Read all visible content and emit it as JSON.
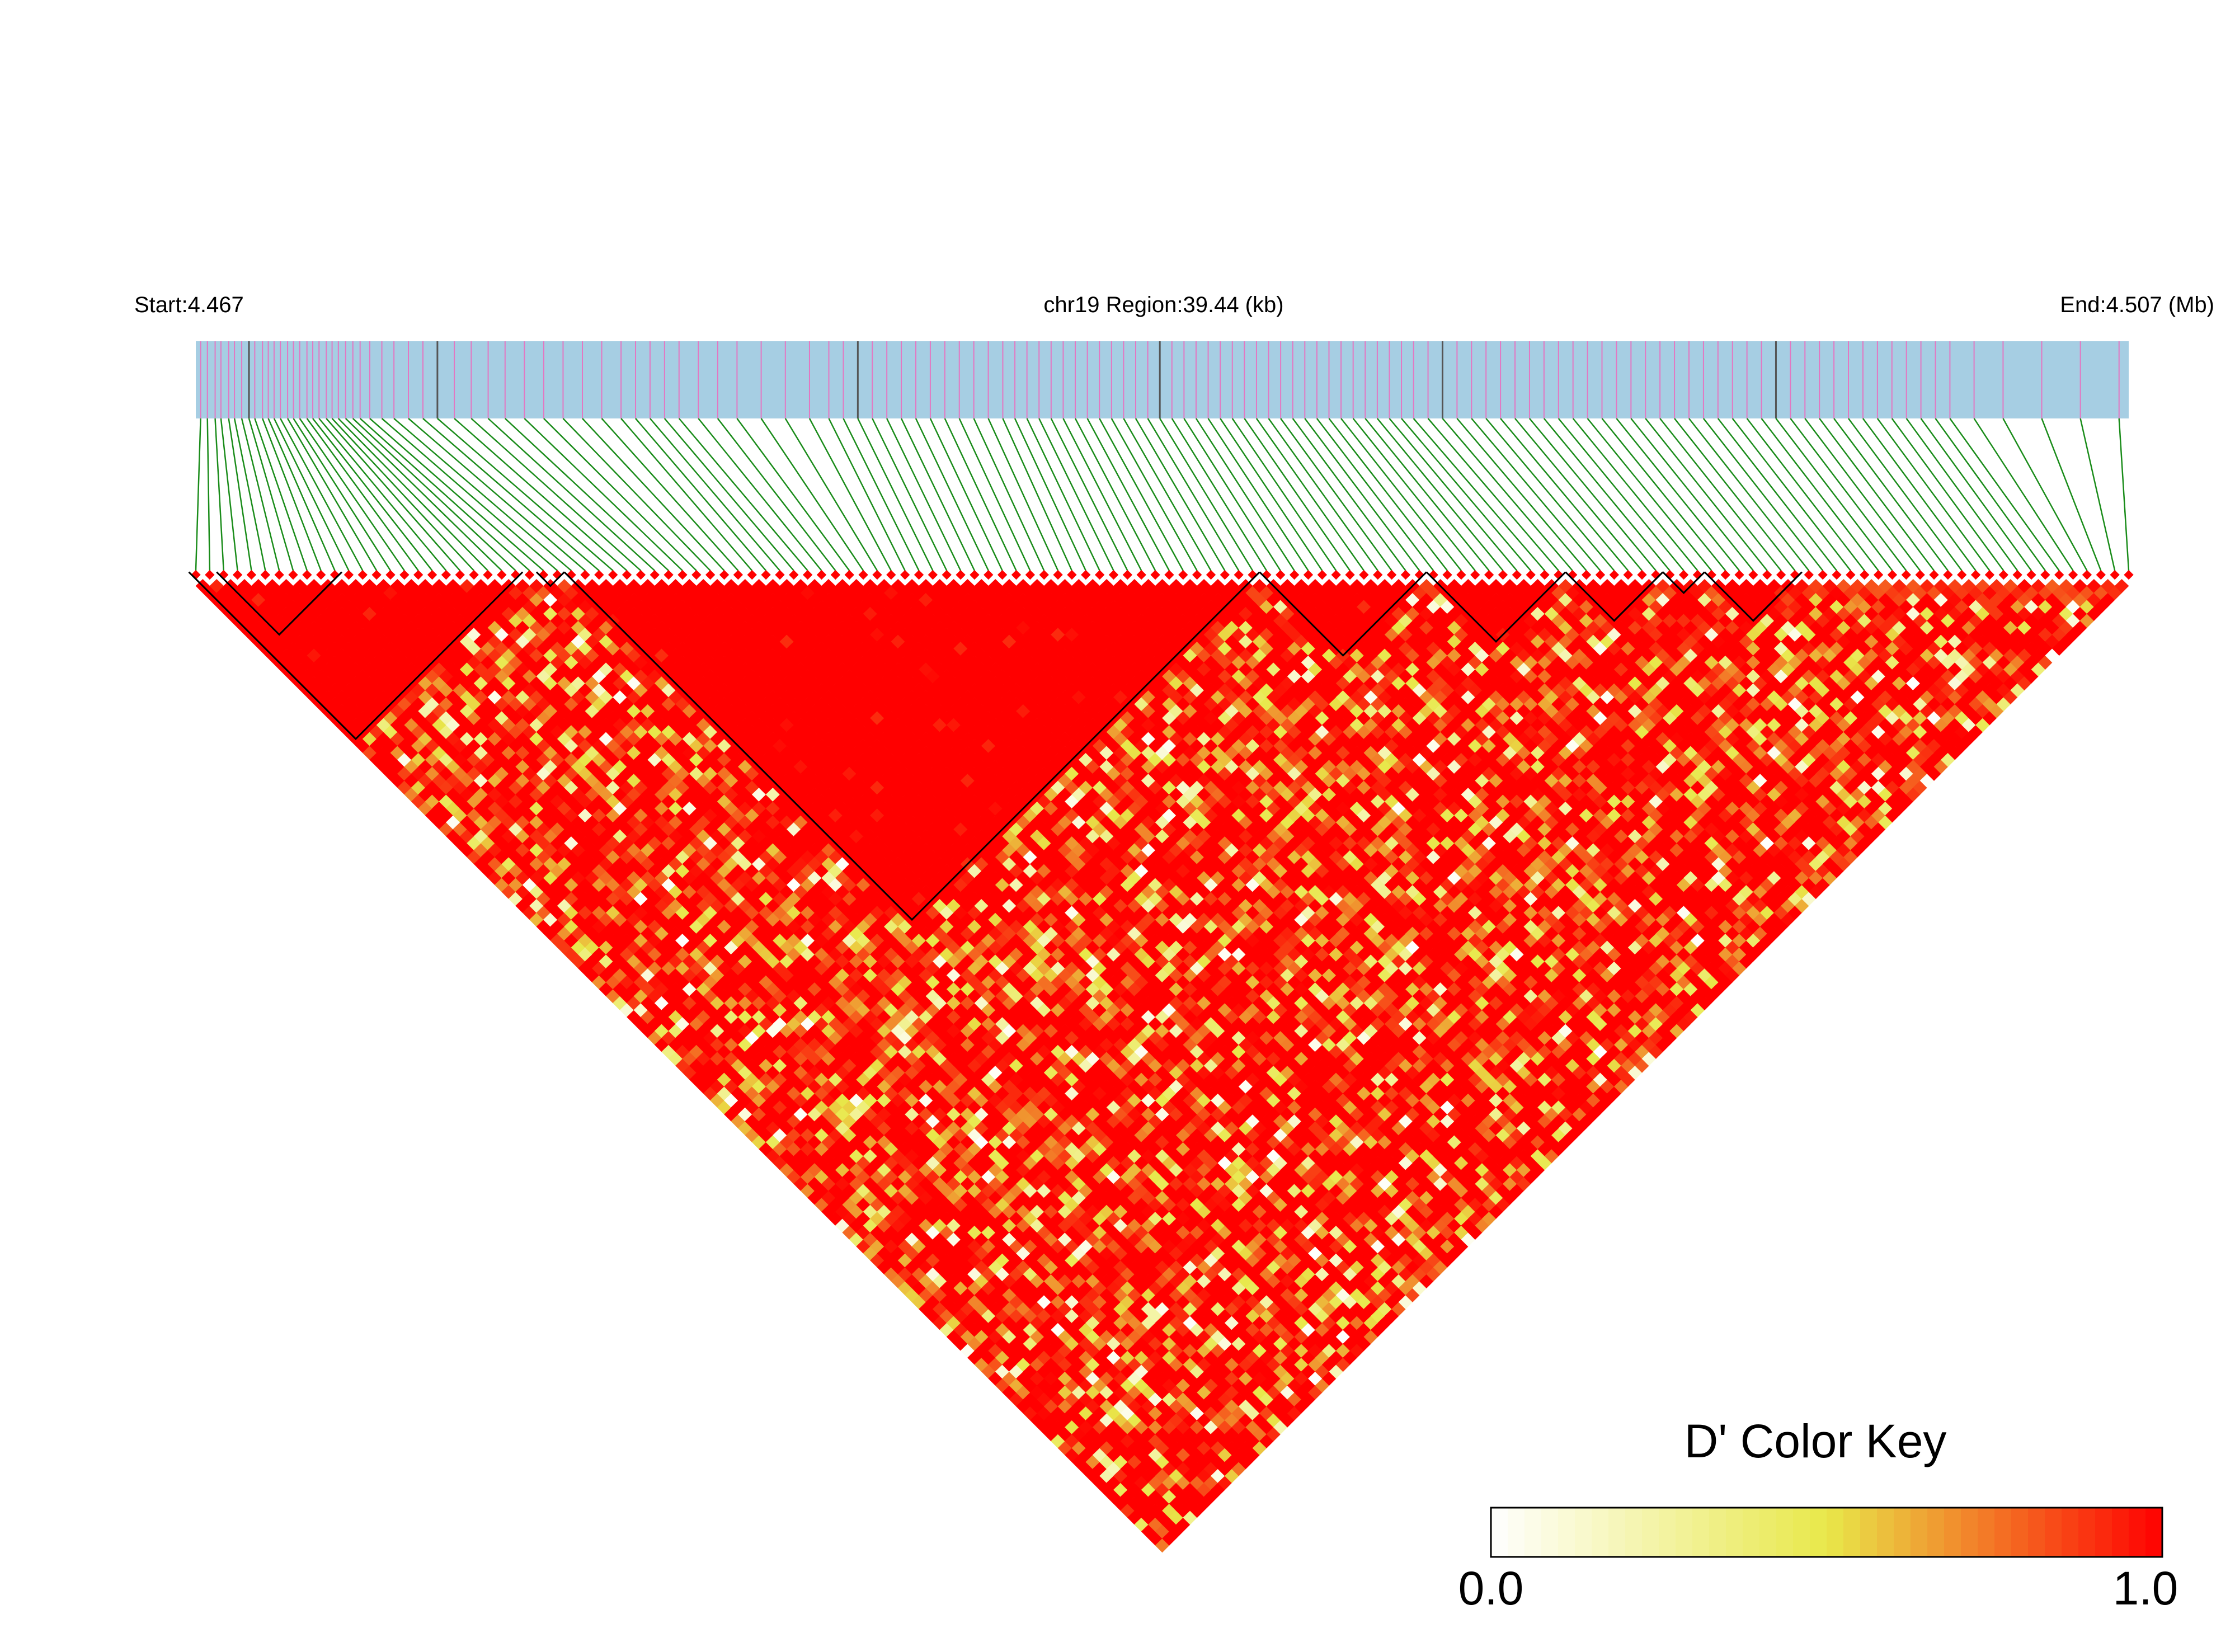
{
  "header": {
    "start_label": "Start:4.467",
    "region_label": "chr19 Region:39.44 (kb)",
    "end_label": "End:4.507 (Mb)"
  },
  "legend": {
    "title": "D' Color Key",
    "min_label": "0.0",
    "max_label": "1.0"
  },
  "colors": {
    "track_fill": "#a6cee3",
    "gene_mark": "#e377c2",
    "dark_mark": "#555555",
    "connector": "#1a8c1a",
    "ld_high": "#ff0000",
    "scale_low": "#ffffff",
    "scale_mid": "#e8e84a",
    "scale_high": "#ff0000",
    "block_outline": "#000000"
  },
  "chart_data": {
    "type": "heatmap",
    "title": "",
    "chromosome": "chr19",
    "region_start_mb": 4.467,
    "region_end_mb": 4.507,
    "region_length_kb": 39.44,
    "n_snps": 140,
    "measure": "D'",
    "value_range": [
      0.0,
      1.0
    ],
    "snp_positions_mb": [
      4.4671,
      4.46724,
      4.4674,
      4.46752,
      4.46768,
      4.4678,
      4.46795,
      4.4681,
      4.46822,
      4.46838,
      4.4685,
      4.46862,
      4.46875,
      4.4689,
      4.46902,
      4.46915,
      4.4693,
      4.46942,
      4.46955,
      4.4697,
      4.46982,
      4.46995,
      4.4701,
      4.47025,
      4.4704,
      4.4706,
      4.47085,
      4.4711,
      4.4714,
      4.4717,
      4.472,
      4.47235,
      4.4727,
      4.47305,
      4.4734,
      4.4738,
      4.4742,
      4.4746,
      4.475,
      4.4754,
      4.4758,
      4.4761,
      4.4764,
      4.4767,
      4.477,
      4.4774,
      4.4778,
      4.4782,
      4.4787,
      4.4792,
      4.4797,
      4.4801,
      4.4804,
      4.4807,
      4.481,
      4.4813,
      4.4816,
      4.4819,
      4.4822,
      4.4825,
      4.4828,
      4.4831,
      4.4834,
      4.4837,
      4.48395,
      4.4842,
      4.48445,
      4.4847,
      4.48495,
      4.4852,
      4.48545,
      4.4857,
      4.48595,
      4.4862,
      4.48645,
      4.4867,
      4.48695,
      4.4872,
      4.48745,
      4.4877,
      4.48795,
      4.4882,
      4.48845,
      4.4887,
      4.48895,
      4.4892,
      4.48945,
      4.4897,
      4.48995,
      4.4902,
      4.49045,
      4.4907,
      4.49095,
      4.4912,
      4.49145,
      4.4917,
      4.49195,
      4.4922,
      4.4925,
      4.4928,
      4.4931,
      4.4934,
      4.4937,
      4.494,
      4.4943,
      4.4946,
      4.4949,
      4.4952,
      4.4955,
      4.4958,
      4.4961,
      4.4964,
      4.4967,
      4.497,
      4.4973,
      4.4976,
      4.4979,
      4.4982,
      4.4985,
      4.4988,
      4.4991,
      4.4994,
      4.4997,
      4.5,
      4.5003,
      4.5006,
      4.5009,
      4.5012,
      4.5015,
      4.5018,
      4.5021,
      4.5024,
      4.5027,
      4.503,
      4.5033,
      4.5038,
      4.5044,
      4.5052,
      4.506,
      4.5068
    ],
    "ld_blocks": [
      {
        "first_snp": 1,
        "last_snp": 24
      },
      {
        "first_snp": 3,
        "last_snp": 11
      },
      {
        "first_snp": 26,
        "last_snp": 27
      },
      {
        "first_snp": 28,
        "last_snp": 77
      },
      {
        "first_snp": 78,
        "last_snp": 89
      },
      {
        "first_snp": 90,
        "last_snp": 99
      },
      {
        "first_snp": 100,
        "last_snp": 106
      },
      {
        "first_snp": 107,
        "last_snp": 109
      },
      {
        "first_snp": 110,
        "last_snp": 116
      }
    ],
    "ld_sampling": "D' values estimated by region from the rendered heatmap: near 1.0 inside outlined blocks, mostly 0.6-1.0 between blocks with scattered low values"
  }
}
